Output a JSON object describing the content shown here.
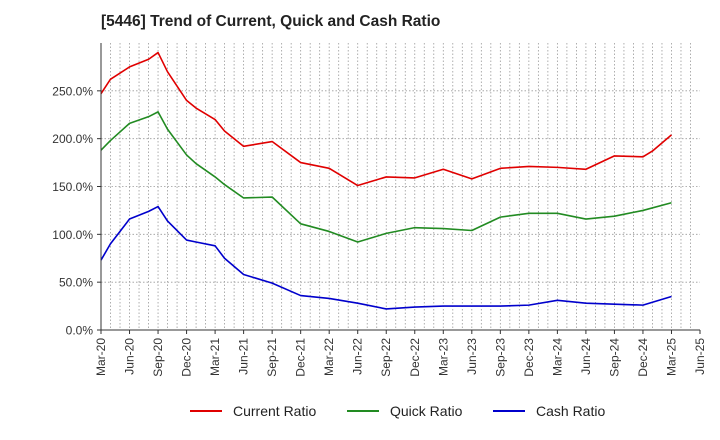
{
  "chart_data": {
    "type": "line",
    "title": "[5446]  Trend of Current, Quick and Cash Ratio",
    "xlabel": "",
    "ylabel": "",
    "ylim": [
      0,
      300
    ],
    "y_ticks": [
      0,
      50,
      100,
      150,
      200,
      250
    ],
    "y_tick_labels": [
      "0.0%",
      "50.0%",
      "100.0%",
      "150.0%",
      "200.0%",
      "250.0%"
    ],
    "x_tick_labels": [
      "Mar-20",
      "Jun-20",
      "Sep-20",
      "Dec-20",
      "Mar-21",
      "Jun-21",
      "Sep-21",
      "Dec-21",
      "Mar-22",
      "Jun-22",
      "Sep-22",
      "Dec-22",
      "Mar-23",
      "Jun-23",
      "Sep-23",
      "Dec-23",
      "Mar-24",
      "Jun-24",
      "Sep-24",
      "Dec-24",
      "Mar-25",
      "Jun-25"
    ],
    "grid": true,
    "legend_position": "bottom",
    "series": [
      {
        "name": "Current Ratio",
        "color": "#e00000",
        "points": [
          [
            0,
            247
          ],
          [
            0.33,
            262
          ],
          [
            1,
            275
          ],
          [
            1.67,
            283
          ],
          [
            2,
            290
          ],
          [
            2.33,
            270
          ],
          [
            3,
            240
          ],
          [
            3.33,
            232
          ],
          [
            4,
            220
          ],
          [
            4.33,
            208
          ],
          [
            5,
            192
          ],
          [
            6,
            197
          ],
          [
            7,
            175
          ],
          [
            8,
            169
          ],
          [
            9,
            151
          ],
          [
            10,
            160
          ],
          [
            11,
            159
          ],
          [
            12,
            168
          ],
          [
            13,
            158
          ],
          [
            14,
            169
          ],
          [
            15,
            171
          ],
          [
            16,
            170
          ],
          [
            17,
            168
          ],
          [
            18,
            182
          ],
          [
            19,
            181
          ],
          [
            19.33,
            187
          ],
          [
            20,
            204
          ]
        ]
      },
      {
        "name": "Quick Ratio",
        "color": "#228b22",
        "points": [
          [
            0,
            188
          ],
          [
            0.33,
            198
          ],
          [
            1,
            216
          ],
          [
            1.67,
            223
          ],
          [
            2,
            228
          ],
          [
            2.33,
            210
          ],
          [
            3,
            183
          ],
          [
            3.33,
            174
          ],
          [
            4,
            160
          ],
          [
            4.33,
            152
          ],
          [
            5,
            138
          ],
          [
            6,
            139
          ],
          [
            7,
            111
          ],
          [
            8,
            103
          ],
          [
            9,
            92
          ],
          [
            10,
            101
          ],
          [
            11,
            107
          ],
          [
            12,
            106
          ],
          [
            13,
            104
          ],
          [
            14,
            118
          ],
          [
            15,
            122
          ],
          [
            16,
            122
          ],
          [
            17,
            116
          ],
          [
            18,
            119
          ],
          [
            19,
            125
          ],
          [
            20,
            133
          ]
        ]
      },
      {
        "name": "Cash Ratio",
        "color": "#0000cc",
        "points": [
          [
            0,
            73
          ],
          [
            0.33,
            90
          ],
          [
            1,
            116
          ],
          [
            1.67,
            124
          ],
          [
            2,
            129
          ],
          [
            2.33,
            114
          ],
          [
            3,
            94
          ],
          [
            3.33,
            92
          ],
          [
            4,
            88
          ],
          [
            4.33,
            75
          ],
          [
            5,
            58
          ],
          [
            6,
            49
          ],
          [
            7,
            36
          ],
          [
            8,
            33
          ],
          [
            9,
            28
          ],
          [
            10,
            22
          ],
          [
            11,
            24
          ],
          [
            12,
            25
          ],
          [
            13,
            25
          ],
          [
            14,
            25
          ],
          [
            15,
            26
          ],
          [
            16,
            31
          ],
          [
            17,
            28
          ],
          [
            18,
            27
          ],
          [
            19,
            26
          ],
          [
            20,
            35
          ]
        ]
      }
    ]
  }
}
